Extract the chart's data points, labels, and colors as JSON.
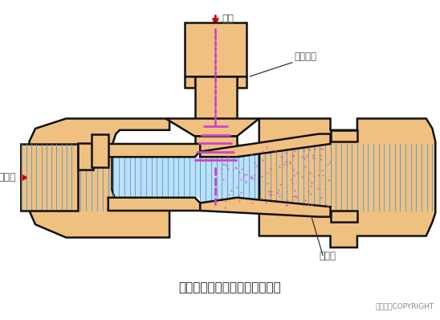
{
  "title": "射流式水力冲击式空气扩散装置",
  "copyright": "东方仿真COPYRIGHT",
  "label_air": "空气",
  "label_air_pipe": "空气竖管",
  "label_mixed": "混合液",
  "label_diffuser": "扩散器",
  "bg_color": "#ffffff",
  "body_color": "#F0C080",
  "body_edge": "#111111",
  "blue_fill": "#BDE0F5",
  "blue_line": "#4499DD",
  "pink_dot": "#DD44DD",
  "pink_dash": "#CC44CC",
  "red_arrow": "#CC0000",
  "text_color": "#444444",
  "title_color": "#222222"
}
